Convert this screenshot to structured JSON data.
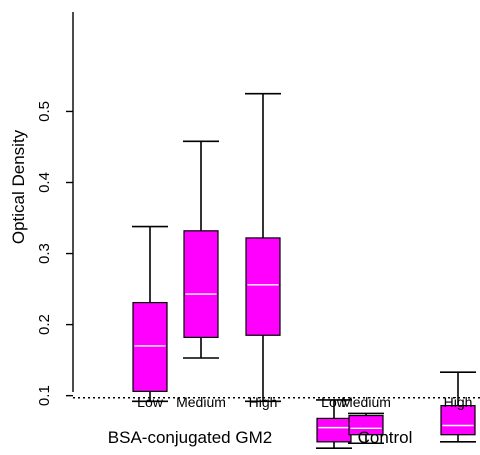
{
  "chart_data": {
    "type": "boxplot",
    "ylabel": "Optical Density",
    "yticks": [
      0.1,
      0.2,
      0.3,
      0.4,
      0.5
    ],
    "ylim": [
      0.01,
      0.55
    ],
    "reference_line": 0.097,
    "box_color": "#ff00ff",
    "median_color": "#ffffff",
    "groups": [
      {
        "label": "BSA-conjugated GM2",
        "categories": [
          {
            "name": "Low",
            "min": 0.092,
            "q1": 0.106,
            "median": 0.17,
            "q3": 0.231,
            "max": 0.338
          },
          {
            "name": "Medium",
            "min": 0.153,
            "q1": 0.182,
            "median": 0.243,
            "q3": 0.332,
            "max": 0.458
          },
          {
            "name": "High",
            "min": 0.092,
            "q1": 0.185,
            "median": 0.256,
            "q3": 0.322,
            "max": 0.525
          }
        ]
      },
      {
        "label": "Control",
        "categories": [
          {
            "name": "Low",
            "min": 0.026,
            "q1": 0.035,
            "median": 0.055,
            "q3": 0.068,
            "max": 0.094
          },
          {
            "name": "Medium",
            "min": 0.033,
            "q1": 0.045,
            "median": 0.054,
            "q3": 0.072,
            "max": 0.075
          },
          {
            "name": "High",
            "min": 0.035,
            "q1": 0.045,
            "median": 0.058,
            "q3": 0.086,
            "max": 0.133
          }
        ]
      }
    ]
  }
}
